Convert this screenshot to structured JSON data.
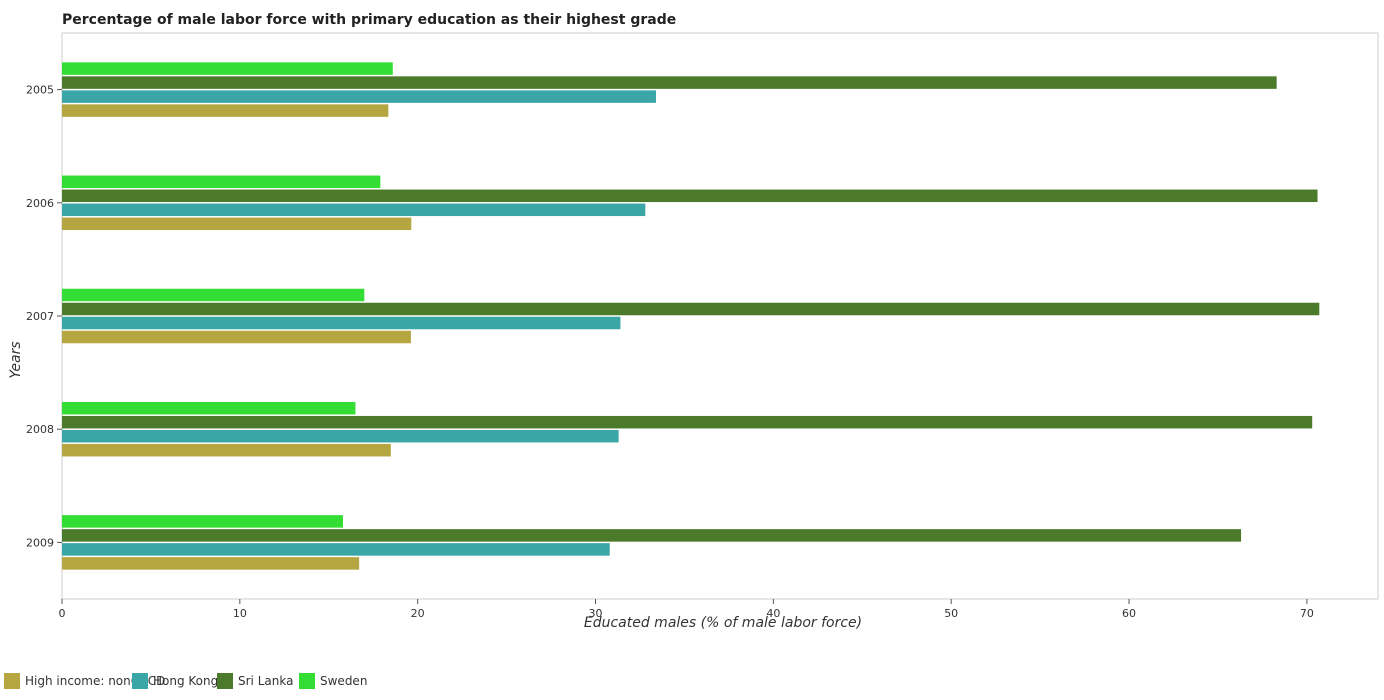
{
  "chart_data": {
    "type": "bar",
    "orientation": "horizontal",
    "title": "Percentage of male labor force with primary education as their highest grade",
    "xlabel": "Educated males (% of male labor force)",
    "ylabel": "Years",
    "categories": [
      "2005",
      "2006",
      "2007",
      "2008",
      "2009"
    ],
    "xlim": [
      0,
      74
    ],
    "xticks": [
      0,
      10,
      20,
      30,
      40,
      50,
      60,
      70
    ],
    "grid": false,
    "legend_position": "bottom-left",
    "series": [
      {
        "name": "High income: nonOECD",
        "color": "#b5a642",
        "values": [
          18.35,
          19.64,
          19.62,
          18.49,
          16.71
        ]
      },
      {
        "name": "Hong Kong",
        "color": "#3aa6a6",
        "values": [
          33.4,
          32.8,
          31.4,
          31.3,
          30.8
        ]
      },
      {
        "name": "Sri Lanka",
        "color": "#4a7a2a",
        "values": [
          68.3,
          70.6,
          70.7,
          70.3,
          66.3
        ]
      },
      {
        "name": "Sweden",
        "color": "#33dd33",
        "values": [
          18.6,
          17.9,
          17.0,
          16.5,
          15.8
        ]
      }
    ]
  }
}
